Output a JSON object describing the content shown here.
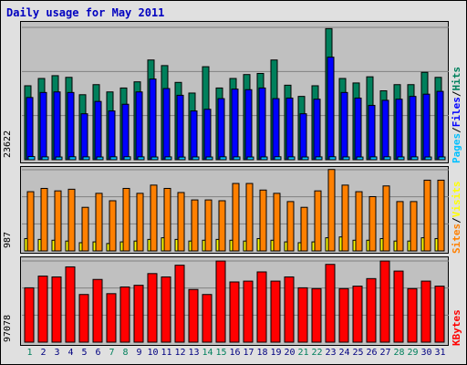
{
  "title": "Daily usage for May 2011",
  "colors": {
    "hits": "#00805c",
    "files": "#0000ff",
    "pages": "#00c0ff",
    "visits": "#ffff00",
    "sites": "#ff8000",
    "kbytes": "#ff0000",
    "background": "#c0c0c0",
    "grid": "#808080",
    "weekend_day": "#00805c",
    "weekday": "#000080"
  },
  "chart_data": [
    {
      "type": "bar",
      "categories": [
        "1",
        "2",
        "3",
        "4",
        "5",
        "6",
        "7",
        "8",
        "9",
        "10",
        "11",
        "12",
        "13",
        "14",
        "15",
        "16",
        "17",
        "18",
        "19",
        "20",
        "21",
        "22",
        "23",
        "24",
        "25",
        "26",
        "27",
        "28",
        "29",
        "30",
        "31"
      ],
      "ylim": [
        0,
        23622
      ],
      "y_max_label": "23622",
      "grid": true,
      "legend_position": "right",
      "legend": [
        "Pages",
        "Files",
        "Hits"
      ],
      "series": [
        {
          "name": "Hits",
          "values": [
            13200,
            14500,
            15000,
            14700,
            11600,
            13400,
            12100,
            12800,
            13900,
            17800,
            16800,
            13800,
            11900,
            16600,
            12800,
            14500,
            15200,
            15400,
            17800,
            13300,
            11300,
            13200,
            23400,
            14500,
            13700,
            14800,
            12300,
            13400,
            13400,
            15600,
            14700
          ]
        },
        {
          "name": "Files",
          "values": [
            11100,
            12000,
            12100,
            12000,
            8200,
            10400,
            8700,
            9900,
            12100,
            14400,
            12700,
            11500,
            8700,
            9000,
            10900,
            12600,
            12500,
            12800,
            10900,
            11000,
            8200,
            10800,
            18300,
            12000,
            11000,
            9700,
            10600,
            10800,
            11300,
            11700,
            12200
          ]
        },
        {
          "name": "Pages",
          "values": [
            550,
            500,
            480,
            520,
            500,
            480,
            510,
            520,
            500,
            480,
            500,
            470,
            490,
            480,
            510,
            500,
            480,
            490,
            520,
            500,
            480,
            500,
            520,
            490,
            480,
            500,
            510,
            490,
            500,
            480,
            490
          ]
        }
      ]
    },
    {
      "type": "bar",
      "categories": [
        "1",
        "2",
        "3",
        "4",
        "5",
        "6",
        "7",
        "8",
        "9",
        "10",
        "11",
        "12",
        "13",
        "14",
        "15",
        "16",
        "17",
        "18",
        "19",
        "20",
        "21",
        "22",
        "23",
        "24",
        "25",
        "26",
        "27",
        "28",
        "29",
        "30",
        "31"
      ],
      "ylim": [
        0,
        987
      ],
      "y_max_label": "987",
      "grid": true,
      "legend_position": "right",
      "legend": [
        "Sites",
        "Visits"
      ],
      "series": [
        {
          "name": "Sites",
          "values": [
            720,
            760,
            730,
            750,
            530,
            700,
            610,
            760,
            700,
            800,
            760,
            710,
            620,
            620,
            610,
            820,
            820,
            740,
            700,
            600,
            530,
            730,
            990,
            800,
            720,
            660,
            790,
            600,
            600,
            860,
            860
          ]
        },
        {
          "name": "Visits",
          "values": [
            150,
            140,
            130,
            120,
            100,
            110,
            90,
            110,
            120,
            140,
            160,
            140,
            120,
            130,
            140,
            130,
            120,
            150,
            130,
            110,
            100,
            110,
            160,
            170,
            130,
            130,
            150,
            120,
            120,
            160,
            150
          ]
        }
      ]
    },
    {
      "type": "bar",
      "categories": [
        "1",
        "2",
        "3",
        "4",
        "5",
        "6",
        "7",
        "8",
        "9",
        "10",
        "11",
        "12",
        "13",
        "14",
        "15",
        "16",
        "17",
        "18",
        "19",
        "20",
        "21",
        "22",
        "23",
        "24",
        "25",
        "26",
        "27",
        "28",
        "29",
        "30",
        "31"
      ],
      "ylim": [
        0,
        97078
      ],
      "y_max_label": "97078",
      "grid": true,
      "legend_position": "right",
      "legend": [
        "KBytes"
      ],
      "series": [
        {
          "name": "KBytes",
          "values": [
            65000,
            79000,
            78000,
            90000,
            57000,
            75000,
            58000,
            66000,
            68000,
            82000,
            78000,
            92000,
            63000,
            57000,
            97000,
            72000,
            73000,
            84000,
            73000,
            78000,
            65000,
            64000,
            93000,
            64000,
            67000,
            76000,
            97000,
            85000,
            64000,
            73000,
            67000
          ]
        }
      ]
    }
  ],
  "weekend_days": [
    "1",
    "7",
    "8",
    "14",
    "15",
    "21",
    "22",
    "28",
    "29"
  ]
}
